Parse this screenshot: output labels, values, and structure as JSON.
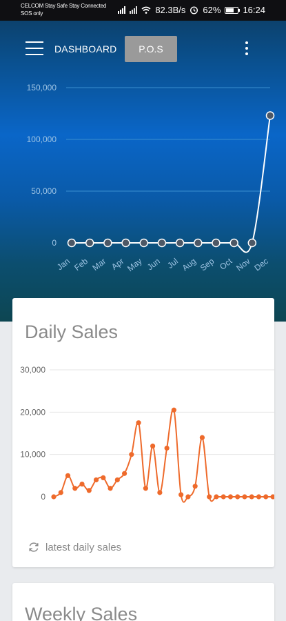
{
  "status_bar": {
    "carrier_line1": "CELCOM Stay Safe Stay Connected",
    "carrier_line2": "SOS only",
    "speed": "82.3B/s",
    "battery": "62%",
    "time": "16:24",
    "icons": [
      "signal-icon",
      "wifi-icon",
      "alarm-icon",
      "battery-icon"
    ]
  },
  "app_bar": {
    "menu_icon": "menu-icon",
    "dashboard_label": "DASHBOARD",
    "pos_label": "P.O.S",
    "more_icon": "more-vert-icon"
  },
  "monthly_chart": {
    "chart_data": {
      "type": "line",
      "categories": [
        "Jan",
        "Feb",
        "Mar",
        "Apr",
        "May",
        "Jun",
        "Jul",
        "Aug",
        "Sep",
        "Oct",
        "Nov",
        "Dec"
      ],
      "values": [
        0,
        0,
        0,
        0,
        0,
        0,
        0,
        0,
        0,
        0,
        0,
        123000
      ],
      "yticks": [
        "0",
        "50,000",
        "100,000",
        "150,000"
      ],
      "ylim": [
        0,
        150000
      ],
      "grid": true,
      "colors": {
        "line": "#ffffff",
        "grid": "#3a8fd0",
        "labels": "#9ec4e4"
      }
    }
  },
  "daily_card": {
    "title": "Daily Sales",
    "footer_label": "latest daily sales",
    "footer_icon": "refresh-icon",
    "chart_data": {
      "type": "line",
      "values": [
        0,
        1000,
        5000,
        2000,
        3000,
        1500,
        4000,
        4500,
        2000,
        4000,
        5500,
        10000,
        17500,
        2000,
        12000,
        1000,
        11500,
        20500,
        500,
        0,
        2500,
        14000,
        0,
        0,
        0,
        0,
        0,
        0,
        0,
        0,
        0,
        0
      ],
      "yticks": [
        "0",
        "10,000",
        "20,000",
        "30,000"
      ],
      "ylim": [
        0,
        30000
      ],
      "grid": true,
      "colors": {
        "line": "#ee6a2b",
        "grid": "#e6e6e6",
        "labels": "#666666"
      }
    }
  },
  "weekly_card": {
    "title": "Weekly Sales"
  }
}
